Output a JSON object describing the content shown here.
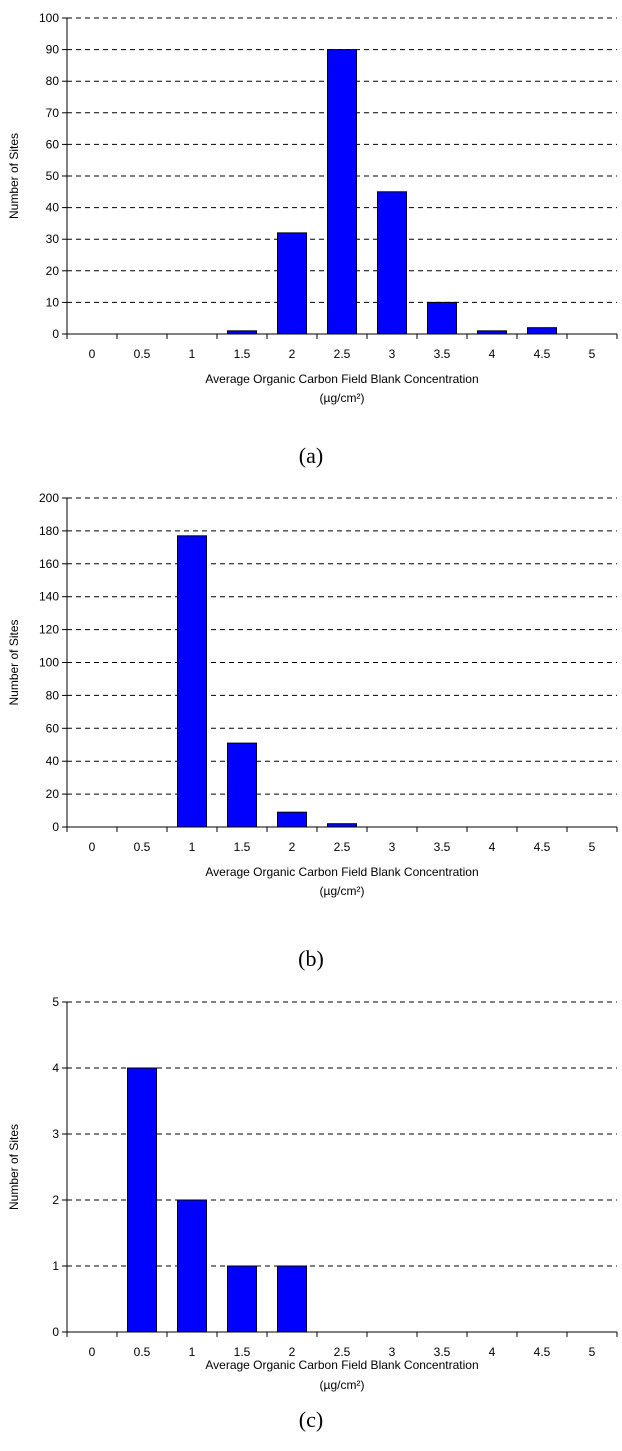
{
  "panels": [
    {
      "label": "(a)"
    },
    {
      "label": "(b)"
    },
    {
      "label": "(c)"
    }
  ],
  "colors": {
    "bar_fill": "#0000ff",
    "bar_stroke": "#000000",
    "grid": "#000000"
  },
  "chart_data": [
    {
      "type": "bar",
      "categories": [
        "0",
        "0.5",
        "1",
        "1.5",
        "2",
        "2.5",
        "3",
        "3.5",
        "4",
        "4.5",
        "5"
      ],
      "values": [
        0,
        0,
        0,
        1,
        32,
        90,
        45,
        10,
        1,
        2,
        0
      ],
      "xlabel": "Average Organic Carbon Field Blank Concentration",
      "xlabel_units": "(µg/cm²)",
      "ylabel": "Number of Sites",
      "ylim": [
        0,
        100
      ],
      "yticks": [
        "0",
        "10",
        "20",
        "30",
        "40",
        "50",
        "60",
        "70",
        "80",
        "90",
        "100"
      ],
      "grid": "horizontal dashed"
    },
    {
      "type": "bar",
      "categories": [
        "0",
        "0.5",
        "1",
        "1.5",
        "2",
        "2.5",
        "3",
        "3.5",
        "4",
        "4.5",
        "5"
      ],
      "values": [
        0,
        0,
        177,
        51,
        9,
        2,
        0,
        0,
        0,
        0,
        0
      ],
      "xlabel": "Average Organic Carbon Field Blank Concentration",
      "xlabel_units": "(µg/cm²)",
      "ylabel": "Number of Sites",
      "ylim": [
        0,
        200
      ],
      "yticks": [
        "0",
        "20",
        "40",
        "60",
        "80",
        "100",
        "120",
        "140",
        "160",
        "180",
        "200"
      ],
      "grid": "horizontal dashed"
    },
    {
      "type": "bar",
      "categories": [
        "0",
        "0.5",
        "1",
        "1.5",
        "2",
        "2.5",
        "3",
        "3.5",
        "4",
        "4.5",
        "5"
      ],
      "values": [
        0,
        4,
        2,
        1,
        1,
        0,
        0,
        0,
        0,
        0,
        0
      ],
      "xlabel": "Average Organic Carbon Field Blank Concentration",
      "xlabel_units": "(µg/cm²)",
      "ylabel": "Number of Sites",
      "ylim": [
        0,
        5
      ],
      "yticks": [
        "0",
        "1",
        "2",
        "3",
        "4",
        "5"
      ],
      "grid": "horizontal dashed"
    }
  ]
}
